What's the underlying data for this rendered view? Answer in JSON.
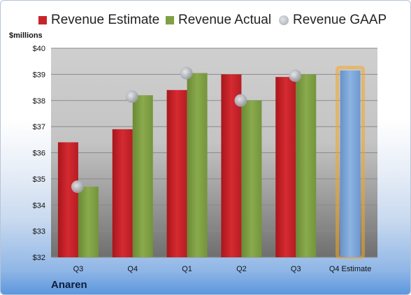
{
  "legend": {
    "estimate": "Revenue Estimate",
    "actual": "Revenue Actual",
    "gaap": "Revenue GAAP"
  },
  "unit_label": "$millions",
  "footer": "Anaren",
  "colors": {
    "estimate": "#c8232a",
    "actual": "#80a045",
    "gaap": "#b0b4ba",
    "forecast": "#7aa6d8",
    "forecast_glow": "#f5a623"
  },
  "chart_data": {
    "type": "bar",
    "categories": [
      "Q3",
      "Q4",
      "Q1",
      "Q2",
      "Q3",
      "Q4 Estimate"
    ],
    "ylim": [
      32,
      40
    ],
    "yticks": [
      "$32",
      "$33",
      "$34",
      "$35",
      "$36",
      "$37",
      "$38",
      "$39",
      "$40"
    ],
    "series": [
      {
        "name": "Revenue Estimate",
        "type": "bar",
        "values": [
          36.4,
          36.9,
          38.4,
          39.0,
          38.9,
          null
        ]
      },
      {
        "name": "Revenue Actual",
        "type": "bar",
        "values": [
          34.7,
          38.2,
          39.05,
          38.0,
          39.0,
          null
        ]
      },
      {
        "name": "Revenue GAAP",
        "type": "marker",
        "values": [
          34.7,
          38.15,
          39.05,
          38.0,
          38.95,
          null
        ]
      }
    ],
    "forecast": {
      "category": "Q4 Estimate",
      "value": 39.15
    },
    "grid": true,
    "legend_position": "top"
  }
}
